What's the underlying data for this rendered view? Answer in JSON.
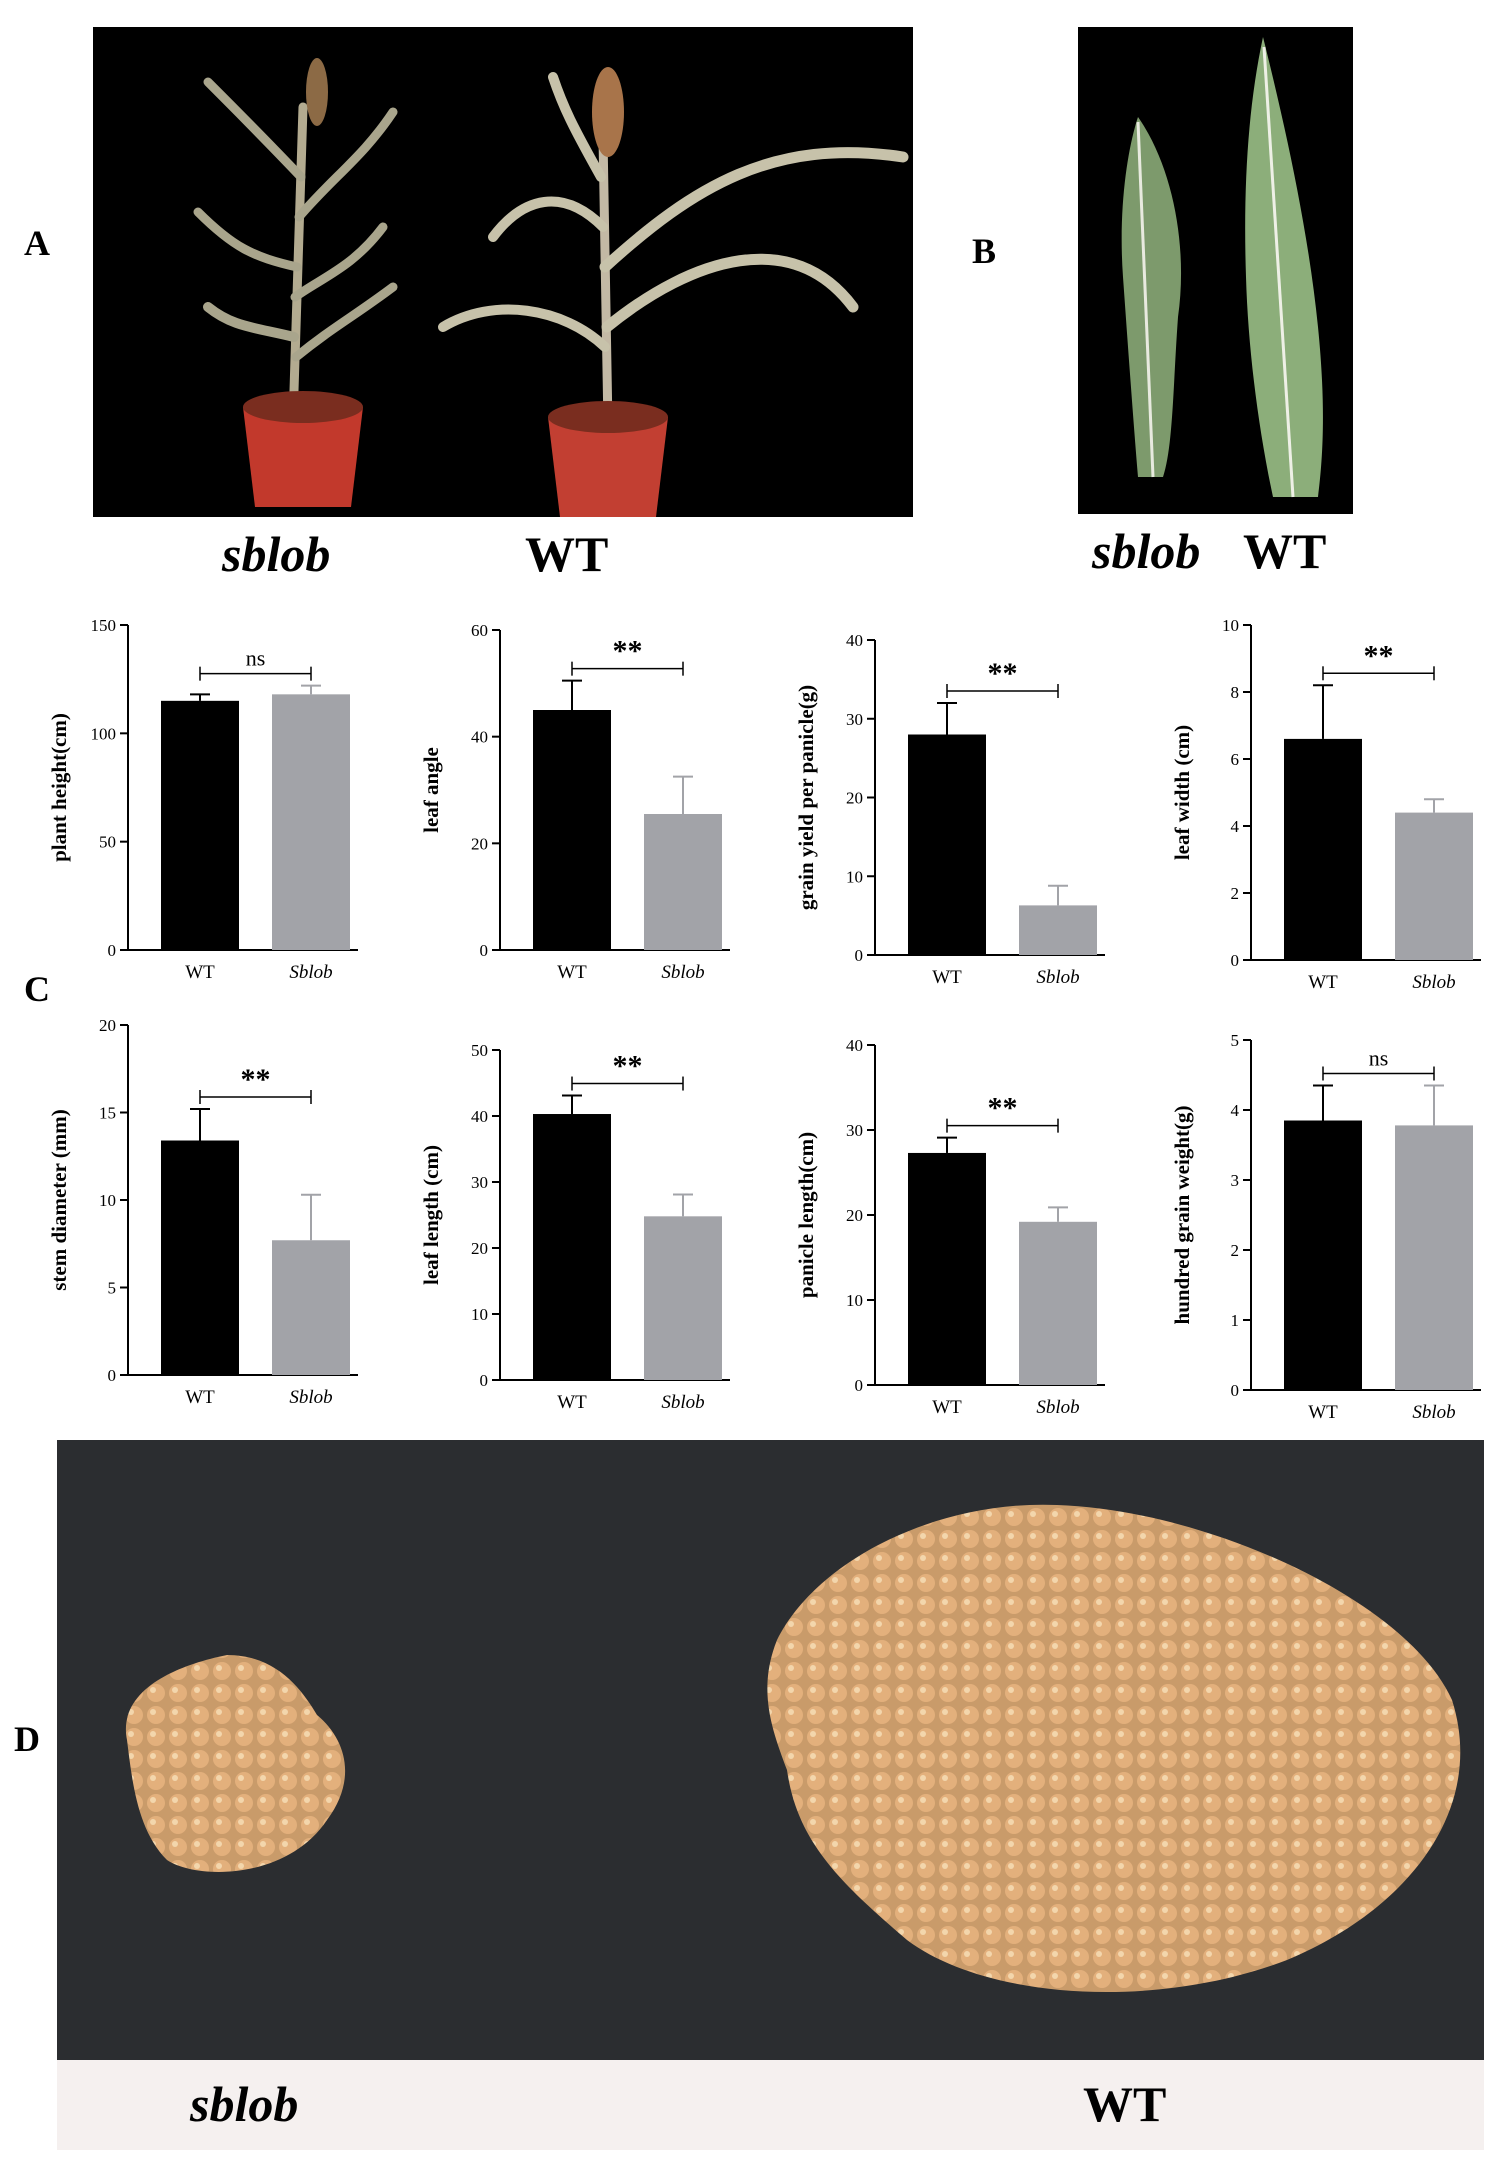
{
  "panels": {
    "a_label": "A",
    "b_label": "B",
    "c_label": "C",
    "d_label": "D"
  },
  "photo_a": {
    "left_caption": "sblob",
    "right_caption": "WT"
  },
  "photo_b": {
    "left_caption": "sblob",
    "right_caption": "WT"
  },
  "photo_d": {
    "left_caption": "sblob",
    "right_caption": "WT"
  },
  "colors": {
    "wt_bar": "#000000",
    "sblob_bar": "#a2a3a8",
    "background": "#ffffff"
  },
  "chart_data": [
    {
      "type": "bar",
      "ylabel": "plant height(cm)",
      "categories": [
        "WT",
        "Sblob"
      ],
      "values": [
        115,
        118
      ],
      "errors": [
        3,
        4
      ],
      "ylim": [
        0,
        150
      ],
      "yticks": [
        0,
        50,
        100,
        150
      ],
      "significance": "ns"
    },
    {
      "type": "bar",
      "ylabel": "leaf angle",
      "categories": [
        "WT",
        "Sblob"
      ],
      "values": [
        45,
        25.5
      ],
      "errors": [
        5.5,
        7
      ],
      "ylim": [
        0,
        60
      ],
      "yticks": [
        0,
        20,
        40,
        60
      ],
      "significance": "**"
    },
    {
      "type": "bar",
      "ylabel": "grain yield per panicle(g)",
      "categories": [
        "WT",
        "Sblob"
      ],
      "values": [
        28,
        6.3
      ],
      "errors": [
        4,
        2.5
      ],
      "ylim": [
        0,
        40
      ],
      "yticks": [
        0,
        10,
        20,
        30,
        40
      ],
      "significance": "**"
    },
    {
      "type": "bar",
      "ylabel": "leaf width (cm)",
      "categories": [
        "WT",
        "Sblob"
      ],
      "values": [
        6.6,
        4.4
      ],
      "errors": [
        1.6,
        0.4
      ],
      "ylim": [
        0,
        10
      ],
      "yticks": [
        0,
        2,
        4,
        6,
        8,
        10
      ],
      "significance": "**"
    },
    {
      "type": "bar",
      "ylabel": "stem diameter (mm)",
      "categories": [
        "WT",
        "Sblob"
      ],
      "values": [
        13.4,
        7.7
      ],
      "errors": [
        1.8,
        2.6
      ],
      "ylim": [
        0,
        20
      ],
      "yticks": [
        0,
        5,
        10,
        15,
        20
      ],
      "significance": "**"
    },
    {
      "type": "bar",
      "ylabel": "leaf length (cm)",
      "categories": [
        "WT",
        "Sblob"
      ],
      "values": [
        40.3,
        24.8
      ],
      "errors": [
        2.8,
        3.3
      ],
      "ylim": [
        0,
        50
      ],
      "yticks": [
        0,
        10,
        20,
        30,
        40,
        50
      ],
      "significance": "**"
    },
    {
      "type": "bar",
      "ylabel": "panicle length(cm)",
      "categories": [
        "WT",
        "Sblob"
      ],
      "values": [
        27.3,
        19.2
      ],
      "errors": [
        1.8,
        1.7
      ],
      "ylim": [
        0,
        40
      ],
      "yticks": [
        0,
        10,
        20,
        30,
        40
      ],
      "significance": "**"
    },
    {
      "type": "bar",
      "ylabel": "hundred grain weight(g)",
      "categories": [
        "WT",
        "Sblob"
      ],
      "values": [
        3.85,
        3.78
      ],
      "errors": [
        0.5,
        0.57
      ],
      "ylim": [
        0,
        5
      ],
      "yticks": [
        0,
        1,
        2,
        3,
        4,
        5
      ],
      "significance": "ns"
    }
  ]
}
